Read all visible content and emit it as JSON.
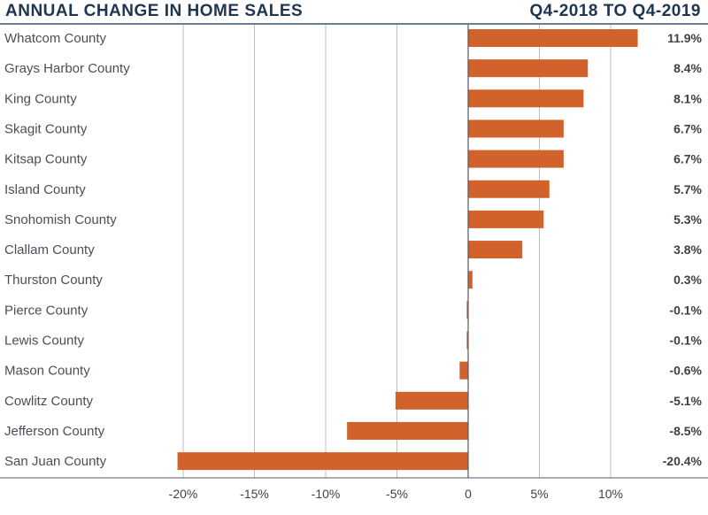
{
  "header": {
    "title": "ANNUAL CHANGE IN HOME SALES",
    "period": "Q4-2018 TO Q4-2019"
  },
  "colors": {
    "bar": "#d2622b",
    "grid": "#bfbfbf",
    "axis": "#555a60",
    "title": "#1f3550"
  },
  "chart_data": {
    "type": "bar",
    "orientation": "horizontal",
    "title": "ANNUAL CHANGE IN HOME SALES",
    "subtitle": "Q4-2018 TO Q4-2019",
    "categories": [
      "Whatcom County",
      "Grays Harbor County",
      "King County",
      "Skagit County",
      "Kitsap County",
      "Island County",
      "Snohomish County",
      "Clallam County",
      "Thurston County",
      "Pierce County",
      "Lewis County",
      "Mason County",
      "Cowlitz County",
      "Jefferson County",
      "San Juan County"
    ],
    "values": [
      11.9,
      8.4,
      8.1,
      6.7,
      6.7,
      5.7,
      5.3,
      3.8,
      0.3,
      -0.1,
      -0.1,
      -0.6,
      -5.1,
      -8.5,
      -20.4
    ],
    "value_labels": [
      "11.9%",
      "8.4%",
      "8.1%",
      "6.7%",
      "6.7%",
      "5.7%",
      "5.3%",
      "3.8%",
      "0.3%",
      "-0.1%",
      "-0.1%",
      "-0.6%",
      "-5.1%",
      "-8.5%",
      "-20.4%"
    ],
    "xticks": [
      -20,
      -15,
      -10,
      -5,
      0,
      5,
      10
    ],
    "xtick_labels": [
      "-20%",
      "-15%",
      "-10%",
      "-5%",
      "0",
      "5%",
      "10%"
    ],
    "xlim": [
      -22,
      13.5
    ],
    "xlabel": "",
    "ylabel": "",
    "grid": "vertical",
    "legend": "none"
  }
}
